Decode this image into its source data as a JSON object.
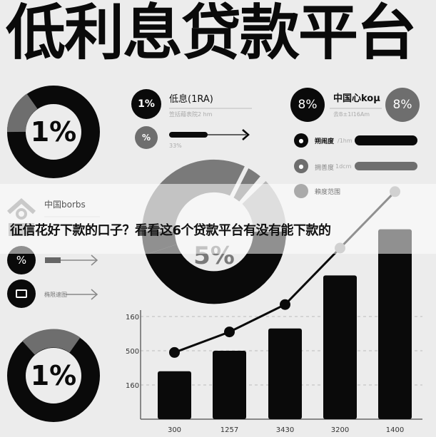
{
  "title": "低利息贷款平台",
  "caption": "征信花好下款的口子？看看这6个贷款平台有没有能下款的",
  "donut_top_left": {
    "label": "1%"
  },
  "donut_center": {
    "label": "5%"
  },
  "donut_bottom_left": {
    "label": "1%"
  },
  "panel_left": {
    "badge1": "1%",
    "heading": "低息(1RA)",
    "sub": "笠括藉表院2 hm",
    "badge2": "%",
    "progress_label": "33%",
    "progress": 0.33
  },
  "panel_right": {
    "badge1": "8%",
    "heading": "中国心koμ",
    "sub": "去B±1I16Am",
    "badge2": "8%",
    "rows": [
      {
        "label": "朔闹度",
        "sub": "/1hm"
      },
      {
        "label": "拥善度",
        "sub": "1dcm"
      },
      {
        "label": "賴度范围",
        "sub": ""
      }
    ]
  },
  "side_left": {
    "heading": "中国bоrbs",
    "badge": "%",
    "row2_label": "椭限速图"
  },
  "colors": {
    "black": "#0a0a0a",
    "gray": "#6e6e6e",
    "light_gray": "#b5b5b5",
    "background": "#ececec"
  },
  "chart_data": {
    "type": "bar",
    "categories": [
      "300",
      "1257",
      "3430",
      "3200",
      "1400"
    ],
    "y_tick_labels": [
      "160",
      "500",
      "160"
    ],
    "y_ticks": [
      3,
      2,
      1
    ],
    "series": [
      {
        "type": "bar",
        "values": [
          1.4,
          2.0,
          2.65,
          4.2,
          5.55
        ]
      },
      {
        "type": "line",
        "values": [
          1.95,
          2.55,
          3.35,
          5.0,
          6.65
        ]
      }
    ],
    "ylim": [
      0,
      7
    ],
    "grid": true
  }
}
